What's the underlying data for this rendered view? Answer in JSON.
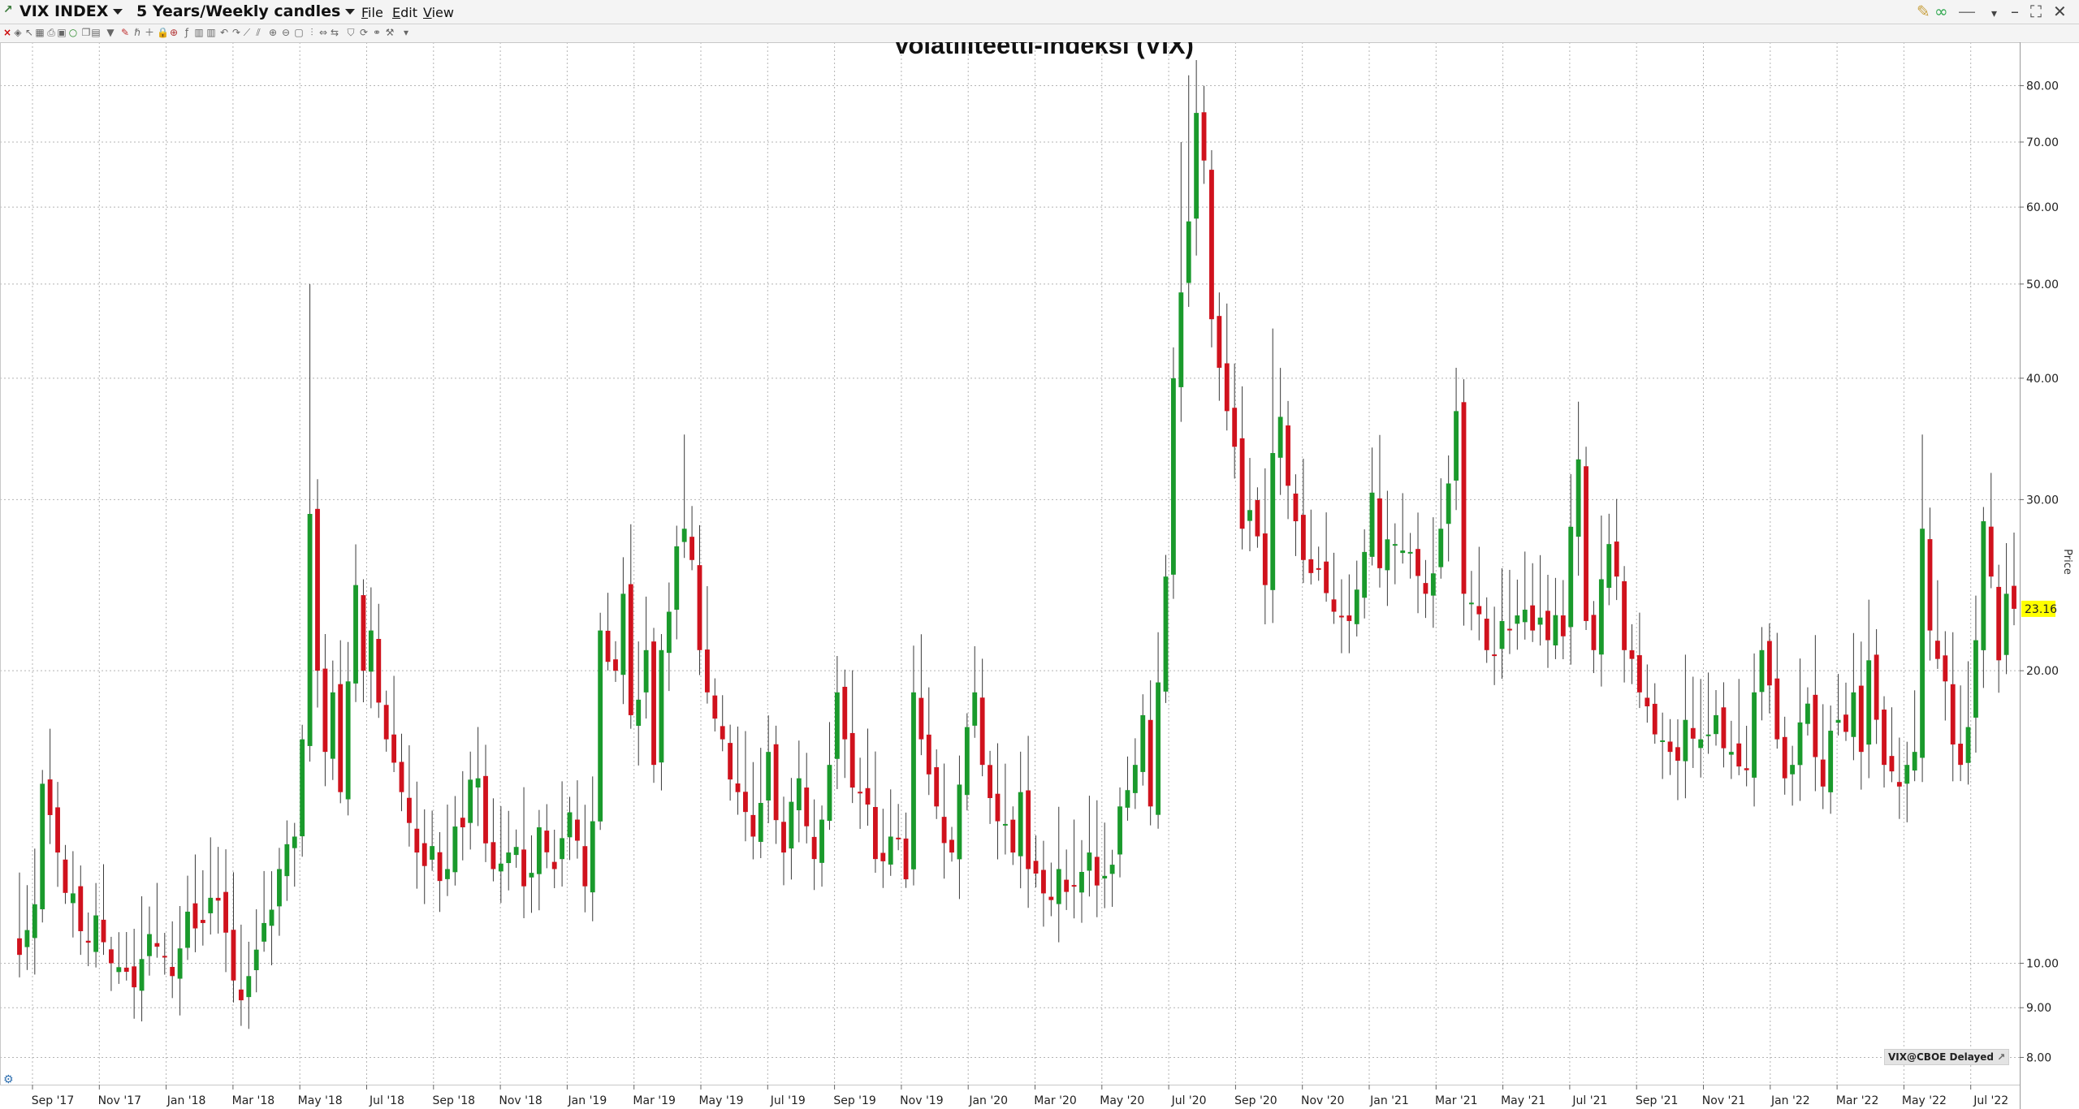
{
  "window": {
    "symbol": "VIX INDEX",
    "period": "5 Years/Weekly candles",
    "menu": [
      "File",
      "Edit",
      "View"
    ]
  },
  "toolbar_icons": [
    "close-icon",
    "crosshair-icon",
    "cursor-icon",
    "grid-icon",
    "print-icon",
    "save-icon",
    "circle-icon",
    "copy-icon",
    "layout-icon",
    "dropdown-icon",
    "pencil-icon",
    "text-tool-icon",
    "add-indicator-icon",
    "lock-icon",
    "target-icon",
    "fibonacci-icon",
    "table-icon",
    "columns-icon",
    "undo-icon",
    "redo-icon",
    "trendline-icon",
    "channel-icon",
    "zoom-in-icon",
    "zoom-out-icon",
    "zoom-reset-icon",
    "bar-mode-icon",
    "fit-icon",
    "scroll-icon",
    "compare-icon",
    "refresh-icon",
    "link-icon",
    "wrench-icon",
    "more-icon"
  ],
  "chart_data": {
    "type": "candlestick",
    "title": "Volatiliteetti-indeksi (VIX)",
    "ylabel": "Price",
    "yscale": "log",
    "ylim": [
      7.5,
      88
    ],
    "y_ticks": [
      8,
      9,
      10,
      20,
      30,
      40,
      50,
      60,
      70,
      80
    ],
    "y_tick_labels": [
      "8.00",
      "9.00",
      "10.00",
      "20.00",
      "30.00",
      "40.00",
      "50.00",
      "60.00",
      "70.00",
      "80.00"
    ],
    "x_tick_labels": [
      "Sep '17",
      "Nov '17",
      "Jan '18",
      "Mar '18",
      "May '18",
      "Jul '18",
      "Sep '18",
      "Nov '18",
      "Jan '19",
      "Mar '19",
      "May '19",
      "Jul '19",
      "Sep '19",
      "Nov '19",
      "Jan '20",
      "Mar '20",
      "May '20",
      "Jul '20",
      "Sep '20",
      "Nov '20",
      "Jan '21",
      "Mar '21",
      "May '21",
      "Jul '21",
      "Sep '21",
      "Nov '21",
      "Jan '22",
      "Mar '22",
      "May '22",
      "Jul '22"
    ],
    "week_count": 262,
    "colors": {
      "up": "#1a9a2c",
      "down": "#d0121d",
      "wick": "#3a3a3a",
      "grid": "#b4b4b4",
      "last_price_bg": "#ffff00"
    },
    "last_price": "23.16",
    "source_label": "VIX@CBOE Delayed",
    "grid": true,
    "anchors": [
      [
        0,
        10.2
      ],
      [
        2,
        11.5
      ],
      [
        3,
        15.3
      ],
      [
        5,
        13.0
      ],
      [
        7,
        11.8
      ],
      [
        9,
        10.5
      ],
      [
        10,
        11.2
      ],
      [
        12,
        10.0
      ],
      [
        14,
        9.8
      ],
      [
        16,
        10.1
      ],
      [
        18,
        10.4
      ],
      [
        20,
        9.7
      ],
      [
        22,
        11.3
      ],
      [
        24,
        11.0
      ],
      [
        26,
        11.6
      ],
      [
        28,
        9.6
      ],
      [
        30,
        9.7
      ],
      [
        32,
        11.0
      ],
      [
        34,
        12.5
      ],
      [
        36,
        13.5
      ],
      [
        37,
        17.0
      ],
      [
        38,
        29.0
      ],
      [
        39,
        20.0
      ],
      [
        40,
        16.5
      ],
      [
        41,
        19.0
      ],
      [
        42,
        15.0
      ],
      [
        43,
        19.5
      ],
      [
        44,
        24.5
      ],
      [
        45,
        20.0
      ],
      [
        46,
        22.0
      ],
      [
        48,
        17.0
      ],
      [
        50,
        15.0
      ],
      [
        52,
        13.0
      ],
      [
        54,
        13.2
      ],
      [
        56,
        12.5
      ],
      [
        58,
        13.8
      ],
      [
        60,
        15.5
      ],
      [
        62,
        12.5
      ],
      [
        64,
        13.0
      ],
      [
        66,
        12.0
      ],
      [
        68,
        13.8
      ],
      [
        70,
        12.5
      ],
      [
        72,
        14.3
      ],
      [
        74,
        12.0
      ],
      [
        75,
        14.0
      ],
      [
        76,
        22.0
      ],
      [
        78,
        20.0
      ],
      [
        79,
        24.0
      ],
      [
        80,
        18.0
      ],
      [
        82,
        21.0
      ],
      [
        83,
        16.0
      ],
      [
        84,
        21.0
      ],
      [
        85,
        23.0
      ],
      [
        87,
        28.0
      ],
      [
        88,
        26.0
      ],
      [
        89,
        21.0
      ],
      [
        90,
        19.0
      ],
      [
        92,
        17.0
      ],
      [
        94,
        15.0
      ],
      [
        96,
        13.5
      ],
      [
        98,
        16.5
      ],
      [
        100,
        13.0
      ],
      [
        102,
        15.5
      ],
      [
        104,
        12.8
      ],
      [
        106,
        16.0
      ],
      [
        107,
        19.0
      ],
      [
        108,
        17.0
      ],
      [
        110,
        15.0
      ],
      [
        112,
        12.8
      ],
      [
        114,
        13.5
      ],
      [
        116,
        12.2
      ],
      [
        117,
        19.0
      ],
      [
        118,
        17.0
      ],
      [
        120,
        14.5
      ],
      [
        122,
        13.0
      ],
      [
        124,
        17.5
      ],
      [
        125,
        19.0
      ],
      [
        126,
        16.0
      ],
      [
        128,
        14.0
      ],
      [
        130,
        13.0
      ],
      [
        131,
        15.0
      ],
      [
        132,
        12.5
      ],
      [
        134,
        11.8
      ],
      [
        136,
        12.5
      ],
      [
        138,
        12.0
      ],
      [
        140,
        13.0
      ],
      [
        142,
        12.3
      ],
      [
        144,
        14.5
      ],
      [
        146,
        16.0
      ],
      [
        147,
        18.0
      ],
      [
        148,
        14.5
      ],
      [
        150,
        25.0
      ],
      [
        151,
        40.0
      ],
      [
        153,
        58.0
      ],
      [
        154,
        75.0
      ],
      [
        155,
        67.0
      ],
      [
        156,
        46.0
      ],
      [
        157,
        41.0
      ],
      [
        158,
        37.0
      ],
      [
        159,
        34.0
      ],
      [
        160,
        28.0
      ],
      [
        162,
        27.5
      ],
      [
        163,
        24.5
      ],
      [
        164,
        33.5
      ],
      [
        165,
        36.5
      ],
      [
        166,
        31.0
      ],
      [
        167,
        28.5
      ],
      [
        168,
        26.0
      ],
      [
        170,
        25.5
      ],
      [
        172,
        23.0
      ],
      [
        174,
        22.5
      ],
      [
        176,
        26.5
      ],
      [
        177,
        30.5
      ],
      [
        178,
        25.5
      ],
      [
        180,
        27.0
      ],
      [
        182,
        26.5
      ],
      [
        184,
        24.0
      ],
      [
        186,
        28.0
      ],
      [
        188,
        37.0
      ],
      [
        189,
        24.0
      ],
      [
        190,
        23.5
      ],
      [
        192,
        21.0
      ],
      [
        194,
        22.5
      ],
      [
        196,
        22.8
      ],
      [
        198,
        22.0
      ],
      [
        200,
        21.5
      ],
      [
        202,
        21.7
      ],
      [
        204,
        33.0
      ],
      [
        205,
        22.5
      ],
      [
        206,
        21.0
      ],
      [
        208,
        27.0
      ],
      [
        209,
        25.0
      ],
      [
        210,
        21.0
      ],
      [
        212,
        19.0
      ],
      [
        214,
        17.2
      ],
      [
        216,
        16.5
      ],
      [
        218,
        17.8
      ],
      [
        220,
        17.0
      ],
      [
        222,
        18.0
      ],
      [
        224,
        16.5
      ],
      [
        226,
        15.8
      ],
      [
        227,
        19.0
      ],
      [
        228,
        21.0
      ],
      [
        230,
        17.0
      ],
      [
        231,
        15.5
      ],
      [
        232,
        16.0
      ],
      [
        234,
        18.5
      ],
      [
        236,
        15.2
      ],
      [
        238,
        17.8
      ],
      [
        240,
        19.0
      ],
      [
        241,
        16.5
      ],
      [
        242,
        20.5
      ],
      [
        244,
        16.0
      ],
      [
        246,
        15.2
      ],
      [
        247,
        16.0
      ],
      [
        248,
        16.5
      ],
      [
        249,
        28.0
      ],
      [
        250,
        22.0
      ],
      [
        252,
        19.5
      ],
      [
        254,
        16.0
      ],
      [
        255,
        17.5
      ],
      [
        256,
        21.5
      ],
      [
        257,
        28.5
      ],
      [
        258,
        25.0
      ],
      [
        259,
        20.5
      ],
      [
        260,
        24.0
      ],
      [
        261,
        23.16
      ]
    ],
    "spikes": [
      [
        38,
        50.0
      ],
      [
        87,
        35.0
      ],
      [
        152,
        70.0
      ],
      [
        153,
        82.0
      ],
      [
        154,
        85.0
      ],
      [
        164,
        45.0
      ],
      [
        188,
        41.0
      ],
      [
        249,
        35.0
      ]
    ]
  }
}
